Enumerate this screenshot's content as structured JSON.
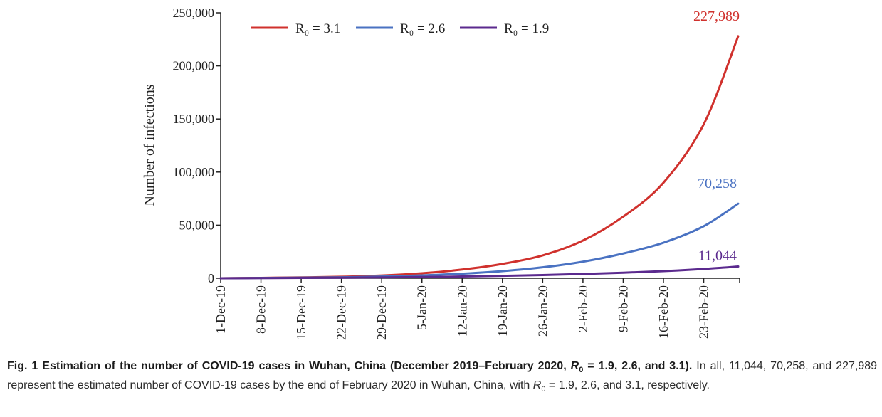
{
  "chart_data": {
    "type": "line",
    "title": "",
    "xlabel": "",
    "ylabel": "Number of infections",
    "ylim": [
      0,
      250000
    ],
    "yticks": [
      0,
      50000,
      100000,
      150000,
      200000,
      250000
    ],
    "ytick_labels": [
      "0",
      "50,000",
      "100,000",
      "150,000",
      "200,000",
      "250,000"
    ],
    "x_start": "2019-12-01",
    "x_end": "2020-02-29",
    "xticks": [
      "2019-12-01",
      "2019-12-08",
      "2019-12-15",
      "2019-12-22",
      "2019-12-29",
      "2020-01-05",
      "2020-01-12",
      "2020-01-19",
      "2020-01-26",
      "2020-02-02",
      "2020-02-09",
      "2020-02-16",
      "2020-02-23"
    ],
    "xtick_labels": [
      "1-Dec-19",
      "8-Dec-19",
      "15-Dec-19",
      "22-Dec-19",
      "29-Dec-19",
      "5-Jan-20",
      "12-Jan-20",
      "19-Jan-20",
      "26-Jan-20",
      "2-Feb-20",
      "9-Feb-20",
      "16-Feb-20",
      "23-Feb-20"
    ],
    "legend_placement": "top",
    "grid": false,
    "series": [
      {
        "name": "R₀ = 3.1",
        "color": "#d0312d",
        "end_label": "227,989",
        "x": [
          "2019-12-01",
          "2019-12-08",
          "2019-12-15",
          "2019-12-22",
          "2019-12-29",
          "2020-01-05",
          "2020-01-12",
          "2020-01-19",
          "2020-01-26",
          "2020-02-02",
          "2020-02-09",
          "2020-02-16",
          "2020-02-23",
          "2020-02-29"
        ],
        "values": [
          0,
          350,
          800,
          1400,
          2600,
          4700,
          8200,
          13500,
          21500,
          35500,
          58000,
          90000,
          145000,
          227989
        ]
      },
      {
        "name": "R₀ = 2.6",
        "color": "#4a72c2",
        "end_label": "70,258",
        "x": [
          "2019-12-01",
          "2019-12-08",
          "2019-12-15",
          "2019-12-22",
          "2019-12-29",
          "2020-01-05",
          "2020-01-12",
          "2020-01-19",
          "2020-01-26",
          "2020-02-02",
          "2020-02-09",
          "2020-02-16",
          "2020-02-23",
          "2020-02-29"
        ],
        "values": [
          0,
          250,
          550,
          900,
          1600,
          2700,
          4300,
          6700,
          10300,
          15600,
          23300,
          33500,
          49000,
          70258
        ]
      },
      {
        "name": "R₀ = 1.9",
        "color": "#5b2a8e",
        "end_label": "11,044",
        "x": [
          "2019-12-01",
          "2019-12-08",
          "2019-12-15",
          "2019-12-22",
          "2019-12-29",
          "2020-01-05",
          "2020-01-12",
          "2020-01-19",
          "2020-01-26",
          "2020-02-02",
          "2020-02-09",
          "2020-02-16",
          "2020-02-23",
          "2020-02-29"
        ],
        "values": [
          0,
          150,
          300,
          500,
          800,
          1150,
          1650,
          2250,
          3000,
          4000,
          5200,
          6700,
          8700,
          11044
        ]
      }
    ]
  },
  "caption": {
    "bold_prefix": "Fig. 1 Estimation of the number of COVID-19 cases in Wuhan, China (December 2019–February 2020, ",
    "bold_r": "R",
    "bold_sub": "0",
    "bold_suffix": " = 1.9, 2.6, and 3.1).",
    "text_1": " In all, 11,044, 70,258, and 227,989 represent the estimated number of COVID-19 cases by the end of February 2020 in Wuhan, China, with ",
    "text_r": "R",
    "text_sub": "0",
    "text_2": " = 1.9, 2.6, and 3.1, respectively."
  }
}
